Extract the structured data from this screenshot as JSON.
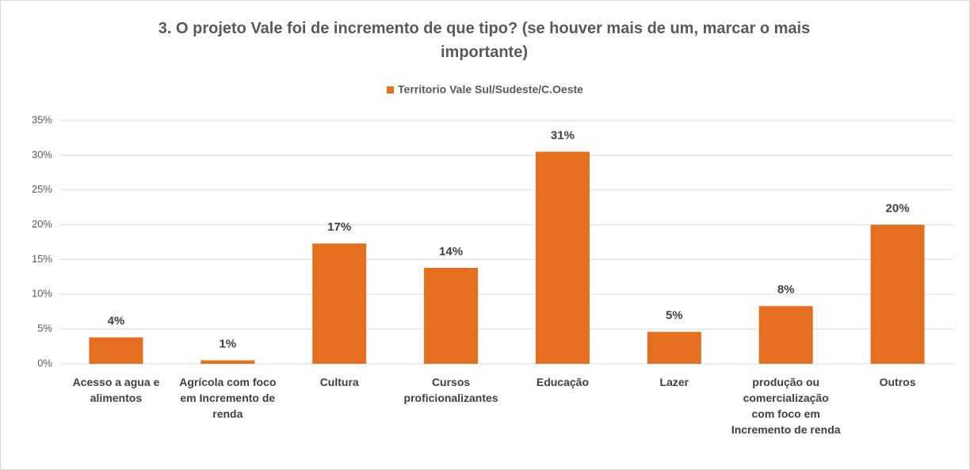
{
  "chart_data": {
    "type": "bar",
    "title": "3. O projeto Vale foi de incremento de que tipo? (se houver mais de um, marcar o mais importante)",
    "categories": [
      "Acesso a agua e alimentos",
      "Agrícola com foco em Incremento de renda",
      "Cultura",
      "Cursos proficionalizantes",
      "Educação",
      "Lazer",
      "produção ou comercialização com foco em Incremento de renda",
      "Outros"
    ],
    "series": [
      {
        "name": "Territorio Vale Sul/Sudeste/C.Oeste",
        "color": "#e46f1f",
        "values": [
          3.8,
          0.5,
          17.3,
          13.8,
          30.5,
          4.6,
          8.3,
          20
        ],
        "value_labels": [
          "4%",
          "1%",
          "17%",
          "14%",
          "31%",
          "5%",
          "8%",
          "20%"
        ]
      }
    ],
    "ylim": [
      0,
      35
    ],
    "yticks": [
      {
        "value": 0,
        "label": "0%"
      },
      {
        "value": 5,
        "label": "5%"
      },
      {
        "value": 10,
        "label": "10%"
      },
      {
        "value": 15,
        "label": "15%"
      },
      {
        "value": 20,
        "label": "20%"
      },
      {
        "value": 25,
        "label": "25%"
      },
      {
        "value": 30,
        "label": "30%"
      },
      {
        "value": 35,
        "label": "35%"
      }
    ],
    "grid": true,
    "legend": "top"
  }
}
